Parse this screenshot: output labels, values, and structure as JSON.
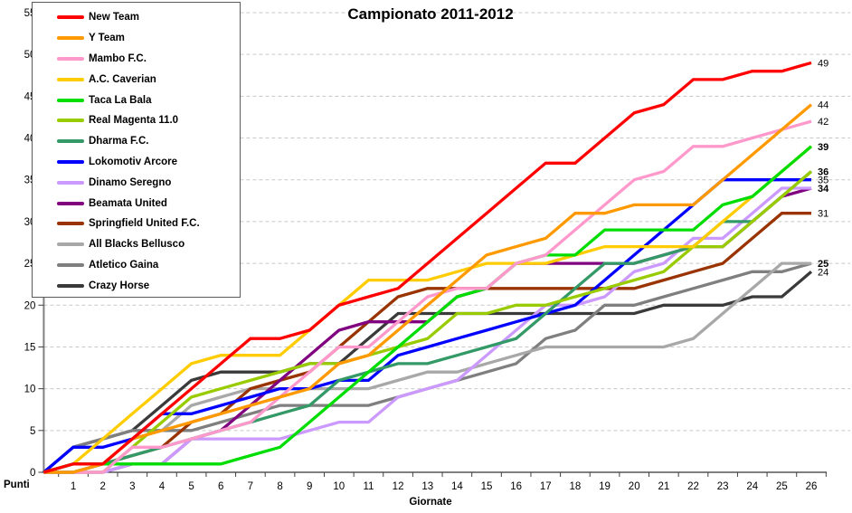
{
  "title": "Campionato 2011-2012",
  "axes": {
    "y_label": "Punti",
    "x_label": "Giornate",
    "y_ticks": [
      0,
      5,
      10,
      15,
      20,
      25,
      30,
      35,
      40,
      45,
      50,
      55
    ],
    "x_ticks": [
      1,
      2,
      3,
      4,
      5,
      6,
      7,
      8,
      9,
      10,
      11,
      12,
      13,
      14,
      15,
      16,
      17,
      18,
      19,
      20,
      21,
      22,
      23,
      24,
      25,
      26
    ],
    "ylim": [
      0,
      55
    ]
  },
  "colors": {
    "grid": "#c8c8c8",
    "y_axis": "#808080",
    "x_axis": "#000000",
    "tick_text": "#000000",
    "background": "#ffffff"
  },
  "chart_data": {
    "type": "line",
    "title": "Campionato 2011-2012",
    "xlabel": "Giornate",
    "ylabel": "Punti",
    "x": [
      1,
      2,
      3,
      4,
      5,
      6,
      7,
      8,
      9,
      10,
      11,
      12,
      13,
      14,
      15,
      16,
      17,
      18,
      19,
      20,
      21,
      22,
      23,
      24,
      25,
      26
    ],
    "ylim": [
      0,
      55
    ],
    "grid": "horizontal-dashed",
    "legend_position": "top-left",
    "start_at_zero": true,
    "draw_order": [
      13,
      12,
      11,
      10,
      9,
      8,
      7,
      6,
      5,
      3,
      4,
      2,
      1,
      0
    ],
    "series": [
      {
        "name": "New Team",
        "color": "#ff0000",
        "final": 49,
        "values": [
          1,
          1,
          4,
          7,
          10,
          13,
          16,
          16,
          17,
          20,
          21,
          22,
          25,
          28,
          31,
          34,
          37,
          37,
          40,
          43,
          44,
          47,
          47,
          48,
          48,
          49
        ]
      },
      {
        "name": "Y Team",
        "color": "#ff9900",
        "final": 44,
        "values": [
          0,
          1,
          4,
          5,
          6,
          7,
          8,
          9,
          10,
          13,
          14,
          17,
          20,
          23,
          26,
          27,
          28,
          31,
          31,
          32,
          32,
          32,
          35,
          38,
          41,
          44
        ]
      },
      {
        "name": "Mambo F.C.",
        "color": "#ff99cc",
        "final": 42,
        "values": [
          0,
          0,
          3,
          3,
          4,
          5,
          6,
          9,
          12,
          15,
          15,
          18,
          21,
          22,
          22,
          25,
          26,
          29,
          32,
          35,
          36,
          39,
          39,
          40,
          41,
          42
        ]
      },
      {
        "name": "A.C. Caverian",
        "color": "#ffcc00",
        "final": 39,
        "values": [
          1,
          4,
          7,
          10,
          13,
          14,
          14,
          14,
          17,
          20,
          23,
          23,
          23,
          24,
          25,
          25,
          25,
          26,
          27,
          27,
          27,
          27,
          30,
          33,
          36,
          39
        ]
      },
      {
        "name": "Taca La Bala",
        "color": "#00dd00",
        "final": 39,
        "values": [
          1,
          1,
          1,
          1,
          1,
          1,
          2,
          3,
          6,
          9,
          12,
          15,
          18,
          21,
          22,
          25,
          26,
          26,
          29,
          29,
          29,
          29,
          32,
          33,
          36,
          39
        ]
      },
      {
        "name": "Real Magenta 11.0",
        "color": "#99cc00",
        "final": 36,
        "values": [
          0,
          0,
          3,
          6,
          9,
          10,
          11,
          12,
          13,
          13,
          14,
          15,
          16,
          19,
          19,
          20,
          20,
          21,
          22,
          23,
          24,
          27,
          27,
          30,
          33,
          36
        ]
      },
      {
        "name": "Dharma F.C.",
        "color": "#339966",
        "final": 36,
        "values": [
          0,
          1,
          2,
          3,
          4,
          5,
          6,
          7,
          8,
          11,
          12,
          13,
          13,
          14,
          15,
          16,
          19,
          22,
          25,
          25,
          26,
          27,
          30,
          30,
          33,
          36
        ]
      },
      {
        "name": "Lokomotiv Arcore",
        "color": "#0000ff",
        "final": 35,
        "values": [
          3,
          3,
          4,
          7,
          7,
          8,
          9,
          10,
          10,
          11,
          11,
          14,
          15,
          16,
          17,
          18,
          19,
          20,
          23,
          26,
          29,
          32,
          35,
          35,
          35,
          35
        ]
      },
      {
        "name": "Dinamo Seregno",
        "color": "#cc99ff",
        "final": 34,
        "values": [
          0,
          0,
          1,
          1,
          4,
          4,
          4,
          4,
          5,
          6,
          6,
          9,
          10,
          11,
          14,
          17,
          20,
          20,
          21,
          24,
          25,
          28,
          28,
          31,
          34,
          34
        ]
      },
      {
        "name": "Beamata United",
        "color": "#800080",
        "final": 34,
        "values": [
          0,
          0,
          1,
          1,
          4,
          5,
          8,
          11,
          14,
          17,
          18,
          18,
          18,
          21,
          22,
          25,
          25,
          25,
          25,
          25,
          26,
          27,
          27,
          30,
          33,
          34
        ]
      },
      {
        "name": "Springfield United F.C.",
        "color": "#993300",
        "final": 31,
        "values": [
          0,
          1,
          2,
          3,
          6,
          7,
          10,
          11,
          12,
          15,
          18,
          21,
          22,
          22,
          22,
          22,
          22,
          22,
          22,
          22,
          23,
          24,
          25,
          28,
          31,
          31
        ]
      },
      {
        "name": "All Blacks Bellusco",
        "color": "#a8a8a8",
        "final": 25,
        "values": [
          1,
          1,
          4,
          5,
          8,
          9,
          10,
          10,
          10,
          10,
          10,
          11,
          12,
          12,
          13,
          14,
          15,
          15,
          15,
          15,
          15,
          16,
          19,
          22,
          25,
          25
        ]
      },
      {
        "name": "Atletico Gaina",
        "color": "#7f7f7f",
        "final": 25,
        "values": [
          3,
          4,
          5,
          5,
          5,
          6,
          7,
          8,
          8,
          8,
          8,
          9,
          10,
          11,
          12,
          13,
          16,
          17,
          20,
          20,
          21,
          22,
          23,
          24,
          24,
          25
        ]
      },
      {
        "name": "Crazy Horse",
        "color": "#3a3a3a",
        "final": 24,
        "values": [
          3,
          4,
          5,
          8,
          11,
          12,
          12,
          12,
          13,
          13,
          16,
          19,
          19,
          19,
          19,
          19,
          19,
          19,
          19,
          19,
          20,
          20,
          20,
          21,
          21,
          24
        ]
      }
    ],
    "end_labels": [
      {
        "value": "49",
        "bold": false
      },
      {
        "value": "44",
        "bold": false
      },
      {
        "value": "42",
        "bold": false
      },
      {
        "value": "39",
        "bold": true
      },
      {
        "value": "36",
        "bold": true
      },
      {
        "value": "35",
        "bold": false
      },
      {
        "value": "34",
        "bold": true
      },
      {
        "value": "31",
        "bold": false
      },
      {
        "value": "25",
        "bold": true
      },
      {
        "value": "24",
        "bold": false
      }
    ]
  }
}
